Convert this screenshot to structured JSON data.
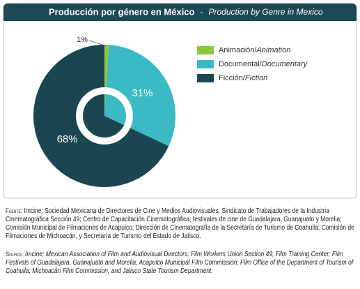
{
  "chart_data": {
    "type": "pie",
    "title": "Producción por género en México",
    "title_separator": "-",
    "title_en": "Production by Genre in Mexico",
    "categories": [
      "Animación",
      "Documental",
      "Ficción"
    ],
    "legend_separator": "/",
    "categories_en": [
      "Animation",
      "Documentary",
      "Fiction"
    ],
    "values": [
      1,
      31,
      68
    ],
    "value_labels": [
      "1%",
      "31%",
      "68%"
    ],
    "colors": [
      "#8dc63f",
      "#3bb9c5",
      "#1b4650"
    ],
    "source_label_es": "Fuente:",
    "source_es": "Imcine; Sociedad Mexicana de Directores de Cine y Medios Audiovisuales; Sindicato de Trabajadores de la Industria Cinematográfica Sección 49; Centro de Capacitación Cinematográfica; festivales de cine de Guadalajara, Guanajuato y Morelia; Comisión Municipal de Filmaciones de Acapulco; Dirección de Cinematografía de la Secretaría de Turismo de Coahuila; Comisión de Filmaciones de Michoacán, y Secretaría de Turismo del Estado de Jalisco.",
    "source_label_en": "Source:",
    "source_en": "Imcine; Mexican Association of Film and Audiovisual Directors; Film Workers Union Section 49; Film Training Center; Film Festivals of Guadalajara, Guanajuato and Morelia; Acapulco Municipal Film Commission; Film Office of the Department of Tourism of Coahuila; Michoacán Film Commission, and Jalisco State Tourism Department."
  }
}
